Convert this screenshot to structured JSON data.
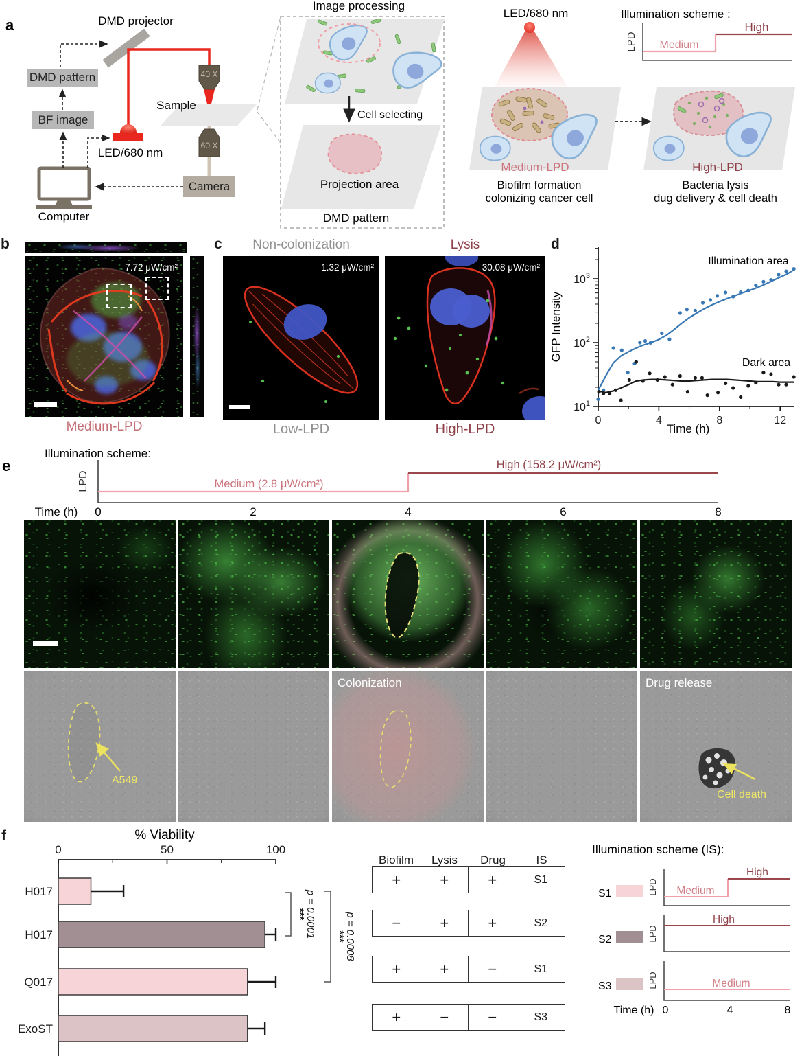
{
  "colors": {
    "medium_pink_line": "#f0a0a8",
    "high_dark_red_line": "#9a474e",
    "medium_text": "#cb767f",
    "high_text": "#8e4048",
    "gray_text": "#909090",
    "blue_series": "#3878b4",
    "laser_red": "#e8281e"
  },
  "panel_a": {
    "label": "a",
    "setup": {
      "projector": "DMD projector",
      "dmd_pattern": "DMD pattern",
      "bf_image": "BF image",
      "computer": "Computer",
      "led": "LED/680 nm",
      "sample": "Sample",
      "obj40": "40 X",
      "obj60": "60 X",
      "camera": "Camera"
    },
    "processing": {
      "title": "Image processing",
      "cell_selecting": "Cell selecting",
      "projection_area": "Projection area",
      "dmd_pattern": "DMD pattern"
    },
    "right": {
      "led": "LED/680 nm",
      "scheme_title": "Illumination scheme :",
      "lpd": "LPD",
      "medium": "Medium",
      "high": "High",
      "medium_lpd": "Medium-LPD",
      "high_lpd": "High-LPD",
      "caption_left1": "Biofilm formation",
      "caption_left2": "colonizing cancer cell",
      "caption_right1": "Bacteria lysis",
      "caption_right2": "dug delivery & cell death"
    }
  },
  "panel_b": {
    "label": "b",
    "dose": "7.72 μW/cm²",
    "caption": "Medium-LPD"
  },
  "panel_c": {
    "label": "c",
    "left": {
      "title": "Non-colonization",
      "dose": "1.32 μW/cm²",
      "caption": "Low-LPD"
    },
    "right": {
      "title": "Lysis",
      "dose": "30.08 μW/cm²",
      "caption": "High-LPD"
    }
  },
  "panel_d": {
    "label": "d"
  },
  "panel_e": {
    "label": "e",
    "scheme_title": "Illumination scheme:",
    "lpd": "LPD",
    "medium_label": "Medium (2.8 μW/cm²)",
    "high_label": "High (158.2 μW/cm²)",
    "time_label": "Time (h)",
    "time_ticks": [
      "0",
      "2",
      "4",
      "6",
      "8"
    ],
    "annotations": {
      "a549": "A549",
      "colonization": "Colonization",
      "drug_release": "Drug release",
      "cell_death": "Cell death"
    }
  },
  "panel_f": {
    "label": "f",
    "table": {
      "headers": [
        "Biofilm",
        "Lysis",
        "Drug",
        "IS"
      ],
      "rows": [
        [
          "+",
          "+",
          "+",
          "S1"
        ],
        [
          "−",
          "+",
          "+",
          "S2"
        ],
        [
          "+",
          "+",
          "−",
          "S1"
        ],
        [
          "+",
          "−",
          "−",
          "S3"
        ]
      ]
    },
    "is_title": "Illumination scheme (IS):",
    "lpd": "LPD",
    "schemes": [
      {
        "id": "S1",
        "swatch": "#f7d4d8",
        "labels": {
          "medium": "Medium",
          "high": "High"
        }
      },
      {
        "id": "S2",
        "swatch": "#a28f94",
        "labels": {
          "high": "High"
        }
      },
      {
        "id": "S3",
        "swatch": "#dcc4c6",
        "labels": {
          "medium": "Medium"
        }
      }
    ],
    "time_label": "Time (h)",
    "time_ticks": [
      "0",
      "4",
      "8"
    ]
  },
  "chart_data": [
    {
      "id": "gfp_vs_time",
      "type": "scatter",
      "title": "",
      "xlabel": "Time (h)",
      "ylabel": "GFP Intensity",
      "xlim": [
        0,
        13
      ],
      "ylim": [
        10,
        3000
      ],
      "ylog": true,
      "xticks": [
        0,
        4,
        8,
        12
      ],
      "xticks_minor": [
        2,
        6,
        10
      ],
      "yticks": [
        10,
        100,
        1000
      ],
      "legend_position": "inline-annotations",
      "series": [
        {
          "name": "Illumination area",
          "color": "#3878b4",
          "points": [
            [
              0,
              13
            ],
            [
              0.35,
              18
            ],
            [
              1,
              82
            ],
            [
              1.55,
              76
            ],
            [
              1.95,
              34
            ],
            [
              2.4,
              47
            ],
            [
              2.75,
              100
            ],
            [
              3.1,
              106
            ],
            [
              3.45,
              99
            ],
            [
              4.2,
              140
            ],
            [
              4.7,
              113
            ],
            [
              5.4,
              290
            ],
            [
              5.85,
              330
            ],
            [
              6.4,
              318
            ],
            [
              6.9,
              420
            ],
            [
              7.4,
              465
            ],
            [
              7.85,
              540
            ],
            [
              8.4,
              610
            ],
            [
              8.9,
              525
            ],
            [
              9.4,
              615
            ],
            [
              9.9,
              655
            ],
            [
              10.4,
              790
            ],
            [
              10.9,
              900
            ],
            [
              11.4,
              960
            ],
            [
              11.9,
              1160
            ],
            [
              12.4,
              1310
            ],
            [
              12.9,
              1430
            ]
          ],
          "trend": [
            [
              0,
              18
            ],
            [
              0.5,
              30
            ],
            [
              1,
              48
            ],
            [
              1.5,
              62
            ],
            [
              2,
              72
            ],
            [
              2.5,
              82
            ],
            [
              3,
              92
            ],
            [
              3.5,
              100
            ],
            [
              4,
              112
            ],
            [
              4.5,
              130
            ],
            [
              5,
              160
            ],
            [
              5.5,
              200
            ],
            [
              6,
              245
            ],
            [
              6.5,
              290
            ],
            [
              7,
              340
            ],
            [
              7.5,
              390
            ],
            [
              8,
              440
            ],
            [
              8.5,
              490
            ],
            [
              9,
              540
            ],
            [
              9.5,
              600
            ],
            [
              10,
              660
            ],
            [
              10.5,
              730
            ],
            [
              11,
              820
            ],
            [
              11.5,
              930
            ],
            [
              12,
              1060
            ],
            [
              12.5,
              1200
            ],
            [
              12.9,
              1380
            ]
          ]
        },
        {
          "name": "Dark area",
          "color": "#1a1a1a",
          "points": [
            [
              0.05,
              17
            ],
            [
              0.35,
              16
            ],
            [
              0.75,
              16
            ],
            [
              1.15,
              18
            ],
            [
              1.5,
              12.5
            ],
            [
              2.05,
              26
            ],
            [
              2.5,
              50
            ],
            [
              2.95,
              25
            ],
            [
              3.4,
              33
            ],
            [
              3.9,
              26
            ],
            [
              4.4,
              29
            ],
            [
              4.9,
              22
            ],
            [
              5.4,
              30
            ],
            [
              5.9,
              17
            ],
            [
              6.4,
              28
            ],
            [
              6.85,
              28
            ],
            [
              7.2,
              15
            ],
            [
              7.9,
              16.5
            ],
            [
              8.4,
              23
            ],
            [
              8.9,
              19.5
            ],
            [
              9.4,
              14
            ],
            [
              9.9,
              21
            ],
            [
              10.4,
              23.5
            ],
            [
              10.9,
              34
            ],
            [
              11.4,
              32
            ],
            [
              11.9,
              22
            ],
            [
              12.4,
              22
            ],
            [
              12.9,
              29
            ]
          ],
          "trend": [
            [
              0,
              17.5
            ],
            [
              0.5,
              16.5
            ],
            [
              1,
              17.5
            ],
            [
              1.5,
              19.5
            ],
            [
              2,
              22
            ],
            [
              2.5,
              25
            ],
            [
              3,
              26
            ],
            [
              3.5,
              26.5
            ],
            [
              4,
              26.5
            ],
            [
              4.5,
              26
            ],
            [
              5,
              25.5
            ],
            [
              5.5,
              25
            ],
            [
              6,
              25
            ],
            [
              6.5,
              25.5
            ],
            [
              7,
              26
            ],
            [
              7.5,
              26.5
            ],
            [
              8,
              26.5
            ],
            [
              8.5,
              26.5
            ],
            [
              9,
              26
            ],
            [
              9.5,
              25.5
            ],
            [
              10,
              25
            ],
            [
              10.5,
              24.5
            ],
            [
              11,
              24.5
            ],
            [
              11.5,
              24.5
            ],
            [
              12,
              24
            ],
            [
              12.5,
              24
            ],
            [
              12.9,
              24
            ]
          ]
        }
      ]
    },
    {
      "id": "viability",
      "type": "bar",
      "title": "% Viability",
      "orientation": "horizontal",
      "categories": [
        "H017",
        "H017",
        "Q017",
        "ExoST"
      ],
      "values": [
        15,
        95,
        87,
        87
      ],
      "errors": [
        15,
        5,
        13,
        8
      ],
      "bar_colors": [
        "#f7d4d8",
        "#a28f94",
        "#f7d4d8",
        "#dcc4c6"
      ],
      "xlim": [
        0,
        100
      ],
      "xticks": [
        0,
        50,
        100
      ],
      "xticks_minor": [
        25,
        75
      ],
      "annotations": [
        {
          "text": "p = 0.0001",
          "stars": "***",
          "between": [
            0,
            1
          ]
        },
        {
          "text": "p = 0.0008",
          "stars": "***",
          "between": [
            0,
            2
          ]
        }
      ]
    }
  ]
}
